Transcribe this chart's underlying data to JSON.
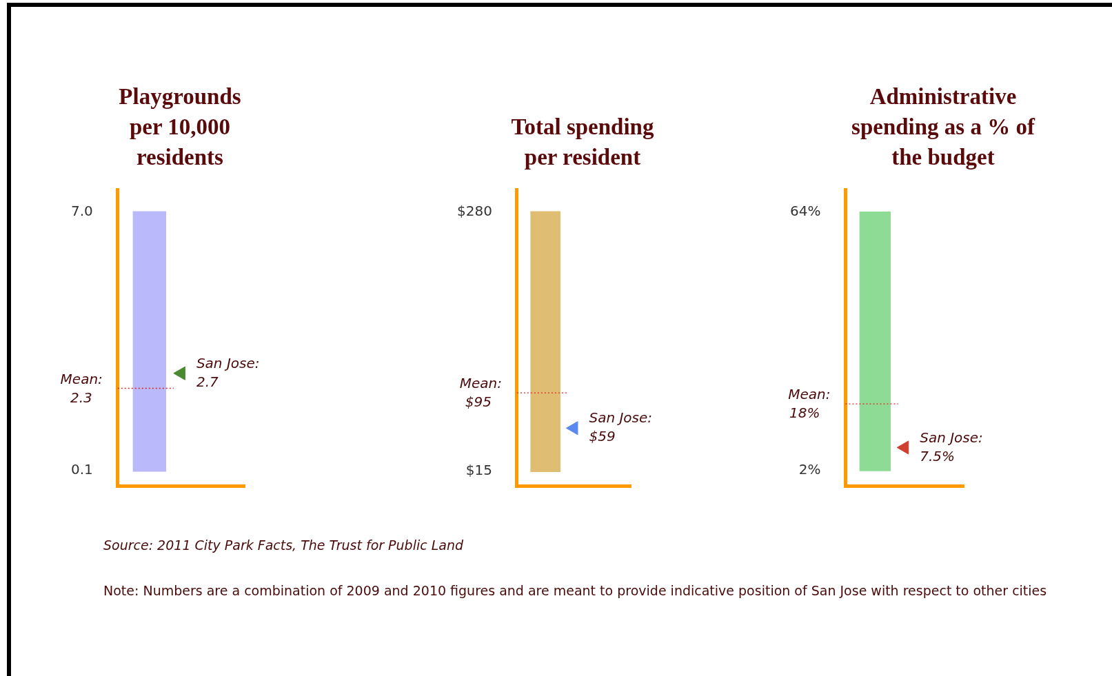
{
  "chart_data": [
    {
      "type": "bar",
      "title": "Playgrounds per 10,000 residents",
      "categories": [
        null
      ],
      "ylim": [
        -0.3,
        7.6
      ],
      "yticks": [
        {
          "value": 0.1,
          "label": "0.1"
        },
        {
          "value": 7.0,
          "label": "7.0"
        }
      ],
      "legend": false,
      "series": [
        {
          "color": "#b9b9fb",
          "values": [
            6.9
          ],
          "base": [
            0.1
          ]
        },
        {
          "type": "scatter",
          "name": "San Jose:",
          "color": "#4a8a30",
          "values": [
            2.7
          ],
          "value_labels": [
            "2.7"
          ]
        }
      ],
      "ref_lines": [
        {
          "axis": "y",
          "value": 2.3,
          "label": "Mean: 2.3",
          "color": "#e02020",
          "line_style": "dotted"
        }
      ],
      "annotations": [
        "Source: 2011 City Park Facts, The Trust for Public Land",
        "Note: Numbers are a combination of 2009 and 2010 figures and are meant to provide indicative position of San Jose with respect to other cities"
      ]
    },
    {
      "type": "bar",
      "title": "Total spending per resident",
      "categories": [
        null
      ],
      "ylim": [
        0,
        303
      ],
      "yticks": [
        {
          "value": 15,
          "label": "$15"
        },
        {
          "value": 280,
          "label": "$280"
        }
      ],
      "legend": false,
      "series": [
        {
          "color": "#dfbd72",
          "values": [
            265
          ],
          "base": [
            15
          ]
        },
        {
          "type": "scatter",
          "name": "San Jose:",
          "color": "#5a8af0",
          "values": [
            59
          ],
          "value_labels": [
            "$59"
          ]
        }
      ],
      "ref_lines": [
        {
          "axis": "y",
          "value": 95,
          "label": "Mean: $95",
          "color": "#e02020",
          "line_style": "dotted"
        }
      ]
    },
    {
      "type": "bar",
      "title": "Administrative spending as a % of the budget",
      "categories": [
        null
      ],
      "ylim": [
        -1.7,
        69.5
      ],
      "yticks": [
        {
          "value": 2,
          "label": "2%"
        },
        {
          "value": 64,
          "label": "64%"
        }
      ],
      "legend": false,
      "series": [
        {
          "color": "#8edb95",
          "values": [
            62
          ],
          "base": [
            2
          ]
        },
        {
          "type": "scatter",
          "name": "San Jose:",
          "color": "#d04030",
          "values": [
            7.5
          ],
          "value_labels": [
            "7.5%"
          ]
        }
      ],
      "ref_lines": [
        {
          "axis": "y",
          "value": 18,
          "label": "Mean: 18%",
          "color": "#e02020",
          "line_style": "dotted"
        }
      ]
    }
  ]
}
